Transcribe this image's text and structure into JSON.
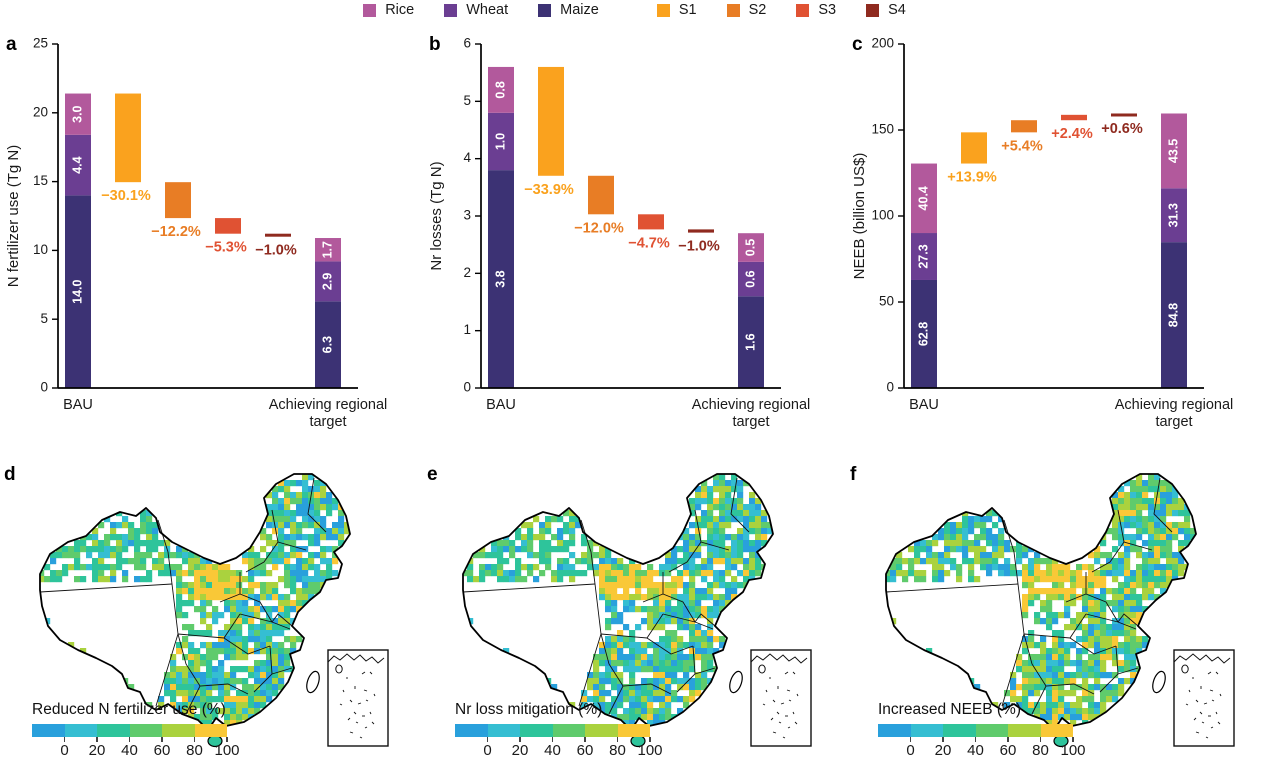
{
  "palette": {
    "rice": "#b2599c",
    "wheat": "#6b3e92",
    "maize": "#3c3274",
    "s1": "#faa21e",
    "s2": "#e87d25",
    "s3": "#e05233",
    "s4": "#8f2a1f",
    "axis": "#000000",
    "bar_value_text": "#ffffff",
    "map_colors": [
      "#29a0dc",
      "#35bed2",
      "#2ec49b",
      "#5fcb6c",
      "#aad23e",
      "#f9c837"
    ]
  },
  "legend": {
    "items": [
      {
        "label": "Rice",
        "color_key": "rice",
        "group": "crop"
      },
      {
        "label": "Wheat",
        "color_key": "wheat",
        "group": "crop"
      },
      {
        "label": "Maize",
        "color_key": "maize",
        "group": "crop"
      },
      {
        "label": "S1",
        "color_key": "s1",
        "group": "scenario"
      },
      {
        "label": "S2",
        "color_key": "s2",
        "group": "scenario"
      },
      {
        "label": "S3",
        "color_key": "s3",
        "group": "scenario"
      },
      {
        "label": "S4",
        "color_key": "s4",
        "group": "scenario"
      }
    ]
  },
  "chart_data": [
    {
      "type": "waterfall-stacked-bar",
      "panel": "a",
      "ylabel": "N fertilizer use (Tg N)",
      "ylim": [
        0,
        25
      ],
      "yticks": [
        0,
        5,
        10,
        15,
        20,
        25
      ],
      "categories": [
        "BAU",
        "S1",
        "S2",
        "S3",
        "S4",
        "Achieving regional target"
      ],
      "xtick_labels": [
        "BAU",
        "Achieving regional\ntarget"
      ],
      "bau_total": 21.4,
      "bau_segments": [
        {
          "crop": "maize",
          "value": 14.0,
          "label": "14.0"
        },
        {
          "crop": "wheat",
          "value": 4.4,
          "label": "4.4"
        },
        {
          "crop": "rice",
          "value": 3.0,
          "label": "3.0"
        }
      ],
      "steps": [
        {
          "scenario": "s1",
          "pct": -30.1,
          "label": "−30.1%"
        },
        {
          "scenario": "s2",
          "pct": -12.2,
          "label": "−12.2%"
        },
        {
          "scenario": "s3",
          "pct": -5.3,
          "label": "−5.3%"
        },
        {
          "scenario": "s4",
          "pct": -1.0,
          "label": "−1.0%"
        }
      ],
      "target_total": 10.9,
      "target_segments": [
        {
          "crop": "maize",
          "value": 6.3,
          "label": "6.3"
        },
        {
          "crop": "wheat",
          "value": 2.9,
          "label": "2.9"
        },
        {
          "crop": "rice",
          "value": 1.7,
          "label": "1.7"
        }
      ]
    },
    {
      "type": "waterfall-stacked-bar",
      "panel": "b",
      "ylabel": "Nr losses (Tg N)",
      "ylim": [
        0,
        6
      ],
      "yticks": [
        0,
        1,
        2,
        3,
        4,
        5,
        6
      ],
      "categories": [
        "BAU",
        "S1",
        "S2",
        "S3",
        "S4",
        "Achieving regional target"
      ],
      "xtick_labels": [
        "BAU",
        "Achieving regional\ntarget"
      ],
      "bau_total": 5.6,
      "bau_segments": [
        {
          "crop": "maize",
          "value": 3.8,
          "label": "3.8"
        },
        {
          "crop": "wheat",
          "value": 1.0,
          "label": "1.0"
        },
        {
          "crop": "rice",
          "value": 0.8,
          "label": "0.8"
        }
      ],
      "steps": [
        {
          "scenario": "s1",
          "pct": -33.9,
          "label": "−33.9%"
        },
        {
          "scenario": "s2",
          "pct": -12.0,
          "label": "−12.0%"
        },
        {
          "scenario": "s3",
          "pct": -4.7,
          "label": "−4.7%"
        },
        {
          "scenario": "s4",
          "pct": -1.0,
          "label": "−1.0%"
        }
      ],
      "target_total": 2.7,
      "target_segments": [
        {
          "crop": "maize",
          "value": 1.6,
          "label": "1.6"
        },
        {
          "crop": "wheat",
          "value": 0.6,
          "label": "0.6"
        },
        {
          "crop": "rice",
          "value": 0.5,
          "label": "0.5"
        }
      ]
    },
    {
      "type": "waterfall-stacked-bar",
      "panel": "c",
      "ylabel": "NEEB (billion US$)",
      "ylim": [
        0,
        200
      ],
      "yticks": [
        0,
        50,
        100,
        150,
        200
      ],
      "categories": [
        "BAU",
        "S1",
        "S2",
        "S3",
        "S4",
        "Achieving regional target"
      ],
      "xtick_labels": [
        "BAU",
        "Achieving regional\ntarget"
      ],
      "bau_total": 130.5,
      "bau_segments": [
        {
          "crop": "maize",
          "value": 62.8,
          "label": "62.8"
        },
        {
          "crop": "wheat",
          "value": 27.3,
          "label": "27.3"
        },
        {
          "crop": "rice",
          "value": 40.4,
          "label": "40.4"
        }
      ],
      "steps": [
        {
          "scenario": "s1",
          "pct": 13.9,
          "label": "+13.9%"
        },
        {
          "scenario": "s2",
          "pct": 5.4,
          "label": "+5.4%"
        },
        {
          "scenario": "s3",
          "pct": 2.4,
          "label": "+2.4%"
        },
        {
          "scenario": "s4",
          "pct": 0.6,
          "label": "+0.6%"
        }
      ],
      "target_total": 159.6,
      "target_segments": [
        {
          "crop": "maize",
          "value": 84.8,
          "label": "84.8"
        },
        {
          "crop": "wheat",
          "value": 31.3,
          "label": "31.3"
        },
        {
          "crop": "rice",
          "value": 43.5,
          "label": "43.5"
        }
      ]
    }
  ],
  "maps": [
    {
      "panel": "d",
      "label": "Reduced N fertilizer use (%)",
      "type": "choropleth",
      "colorbar_ticks": [
        0,
        20,
        40,
        60,
        80,
        100
      ]
    },
    {
      "panel": "e",
      "label": "Nr loss mitigation (%)",
      "type": "choropleth",
      "colorbar_ticks": [
        0,
        20,
        40,
        60,
        80,
        100
      ]
    },
    {
      "panel": "f",
      "label": "Increased NEEB (%)",
      "type": "choropleth",
      "colorbar_ticks": [
        0,
        20,
        40,
        60,
        80,
        100
      ]
    }
  ]
}
